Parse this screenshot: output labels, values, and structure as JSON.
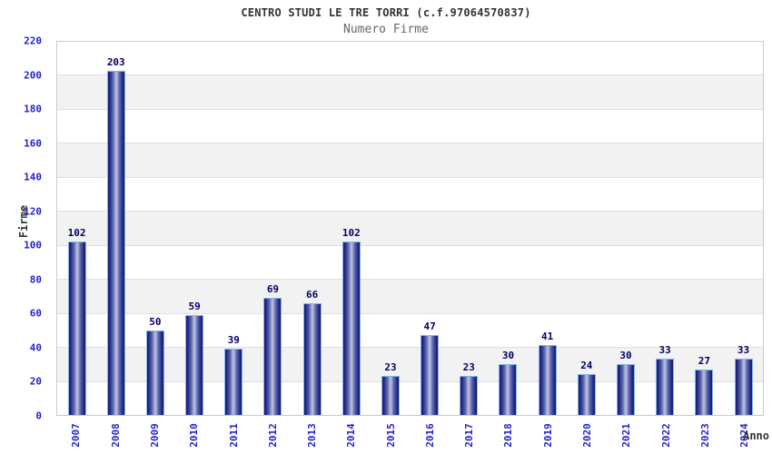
{
  "header": {
    "title": "CENTRO STUDI LE TRE TORRI (c.f.97064570837)",
    "subtitle": "Numero Firme"
  },
  "chart_data": {
    "type": "bar",
    "title": "CENTRO STUDI LE TRE TORRI (c.f.97064570837)",
    "subtitle": "Numero Firme",
    "categories": [
      "2007",
      "2008",
      "2009",
      "2010",
      "2011",
      "2012",
      "2013",
      "2014",
      "2015",
      "2016",
      "2017",
      "2018",
      "2019",
      "2020",
      "2021",
      "2022",
      "2023",
      "2024"
    ],
    "values": [
      102,
      203,
      50,
      59,
      39,
      69,
      66,
      102,
      23,
      47,
      23,
      30,
      41,
      24,
      30,
      33,
      27,
      33
    ],
    "xlabel": "Anno",
    "ylabel": "Firme",
    "ylim": [
      0,
      220
    ],
    "ytick_step": 20,
    "yticks": [
      0,
      20,
      40,
      60,
      80,
      100,
      120,
      140,
      160,
      180,
      200,
      220
    ],
    "grid": true,
    "legend_position": "none",
    "band_style": "alternating horizontal stripes"
  },
  "colors": {
    "axis_tick_label": "#2424cc",
    "value_label": "#000066",
    "bar_edge": "#181f7e",
    "bar_mid": "#5a64ab",
    "bar_center": "#c0c6e4",
    "bar_outline": "#85b4e6",
    "band_alt": "#f2f2f2",
    "grid_line": "#e0e0e0",
    "plot_border": "#c9c9d1",
    "title": "#333333",
    "subtitle": "#666666",
    "background": "#ffffff"
  }
}
